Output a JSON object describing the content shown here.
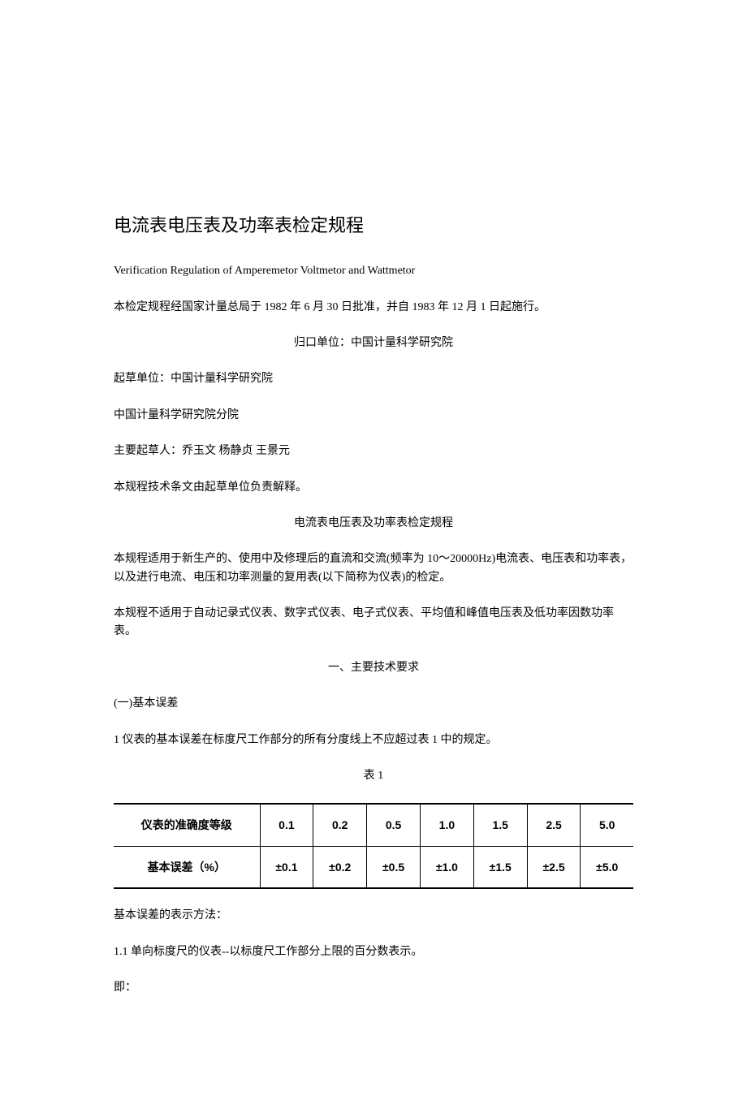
{
  "title": "电流表电压表及功率表检定规程",
  "subtitle_en": "Verification Regulation of Amperemetor Voltmetor and Wattmetor",
  "approval": "本检定规程经国家计量总局于 1982 年 6 月 30 日批准，并自 1983 年 12 月 1 日起施行。",
  "manage_unit": "归口单位：中国计量科学研究院",
  "draft_unit": "起草单位：中国计量科学研究院",
  "branch": "中国计量科学研究院分院",
  "drafters": "主要起草人：乔玉文  杨静贞  王景元",
  "explain": "本规程技术条文由起草单位负责解释。",
  "inner_title": "电流表电压表及功率表检定规程",
  "scope1": "本规程适用于新生产的、使用中及修理后的直流和交流(频率为 10～20000Hz)电流表、电压表和功率表，以及进行电流、电压和功率测量的复用表(以下简称为仪表)的检定。",
  "scope2": "本规程不适用于自动记录式仪表、数字式仪表、电子式仪表、平均值和峰值电压表及低功率因数功率表。",
  "section1": "一、主要技术要求",
  "sub1": "(一)基本误差",
  "clause1": "1  仪表的基本误差在标度尺工作部分的所有分度线上不应超过表 1 中的规定。",
  "table1_caption": "表 1",
  "table1": {
    "row_labels": [
      "仪表的准确度等级",
      "基本误差（%）"
    ],
    "cols": [
      "0.1",
      "0.2",
      "0.5",
      "1.0",
      "1.5",
      "2.5",
      "5.0"
    ],
    "errs": [
      "±0.1",
      "±0.2",
      "±0.5",
      "±1.0",
      "±1.5",
      "±2.5",
      "±5.0"
    ]
  },
  "after_table_1": "基本误差的表示方法：",
  "clause1_1": "1.1  单向标度尺的仪表--以标度尺工作部分上限的百分数表示。",
  "ie": "即："
}
